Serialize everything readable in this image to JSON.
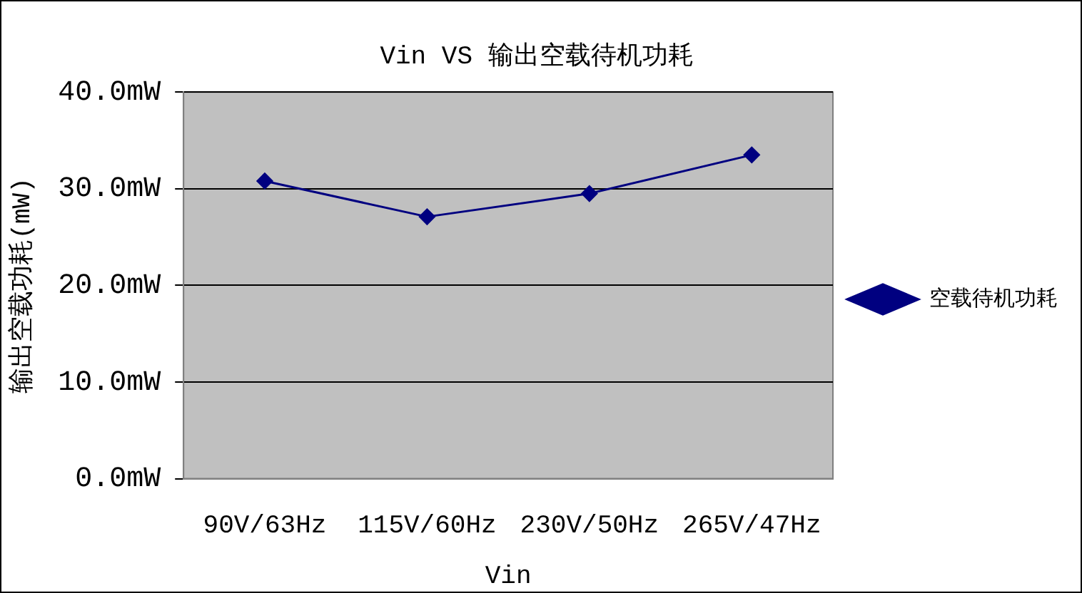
{
  "chart_data": {
    "type": "line",
    "title": "Vin VS 输出空载待机功耗",
    "xlabel": "Vin",
    "ylabel": "输出空载功耗(mW)",
    "categories": [
      "90V/63Hz",
      "115V/60Hz",
      "230V/50Hz",
      "265V/47Hz"
    ],
    "series": [
      {
        "name": "空载待机功耗",
        "color": "#000080",
        "values": [
          30.8,
          27.1,
          29.5,
          33.5
        ]
      }
    ],
    "ylim": [
      0,
      40
    ],
    "yticks": [
      {
        "value": 0,
        "label": "0.0mW"
      },
      {
        "value": 10,
        "label": "10.0mW"
      },
      {
        "value": 20,
        "label": "20.0mW"
      },
      {
        "value": 30,
        "label": "30.0mW"
      },
      {
        "value": 40,
        "label": "40.0mW"
      }
    ],
    "grid": "y",
    "legend": "right",
    "marker": "diamond",
    "line_style": "solid"
  }
}
